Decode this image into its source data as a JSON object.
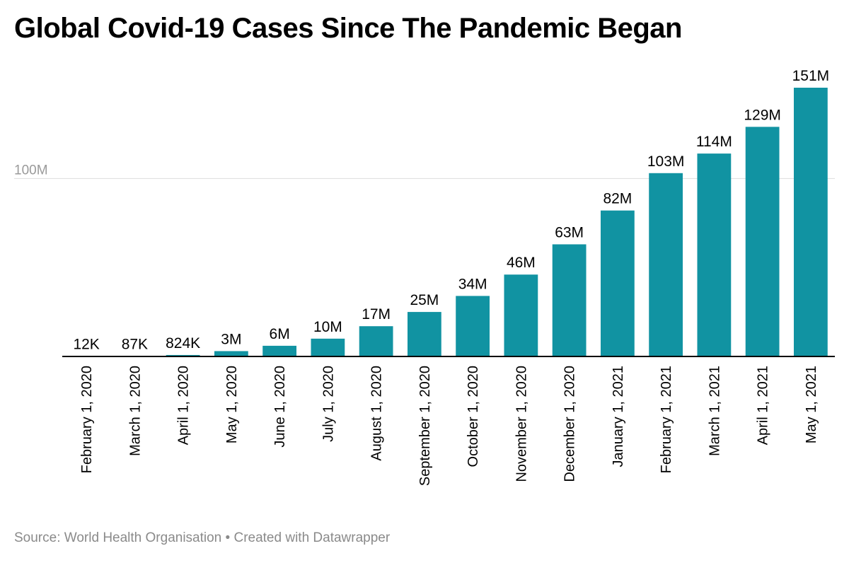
{
  "title": "Global Covid-19 Cases Since The Pandemic Began",
  "footer": {
    "source_label": "Source:",
    "source_name": "World Health Organisation",
    "separator": "•",
    "credit": "Created with Datawrapper"
  },
  "colors": {
    "bar": "#1193a2",
    "axis": "#000000",
    "grid": "#dddddd",
    "tick_text": "#9a9a9a",
    "text": "#000000"
  },
  "chart_data": {
    "type": "bar",
    "categories": [
      "February 1, 2020",
      "March 1, 2020",
      "April 1, 2020",
      "May 1, 2020",
      "June 1, 2020",
      "July 1, 2020",
      "August 1, 2020",
      "September 1, 2020",
      "October 1, 2020",
      "November 1, 2020",
      "December 1, 2020",
      "January 1, 2021",
      "February 1, 2021",
      "March 1, 2021",
      "April 1, 2021",
      "May 1, 2021"
    ],
    "values": [
      12000,
      87000,
      824000,
      3000000,
      6000000,
      10000000,
      17000000,
      25000000,
      34000000,
      46000000,
      63000000,
      82000000,
      103000000,
      114000000,
      129000000,
      151000000
    ],
    "data_labels": [
      "12K",
      "87K",
      "824K",
      "3M",
      "6M",
      "10M",
      "17M",
      "25M",
      "34M",
      "46M",
      "63M",
      "82M",
      "103M",
      "114M",
      "129M",
      "151M"
    ],
    "yticks": [
      100000000
    ],
    "ytick_labels": [
      "100M"
    ],
    "ylim": [
      0,
      151000000
    ],
    "title": "Global Covid-19 Cases Since The Pandemic Began",
    "xlabel": "",
    "ylabel": "",
    "grid": true,
    "legend": false
  }
}
